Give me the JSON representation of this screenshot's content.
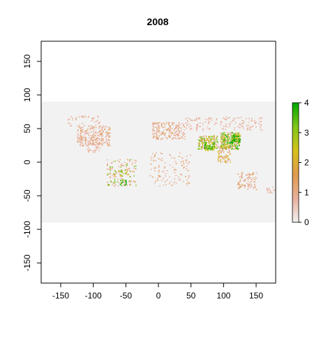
{
  "title": "2008",
  "chart_data": {
    "type": "heatmap",
    "title": "2008",
    "xlabel": "",
    "ylabel": "",
    "xlim": [
      -180,
      180
    ],
    "ylim": [
      -180,
      180
    ],
    "x_ticks": [
      -150,
      -100,
      -50,
      0,
      50,
      100,
      150
    ],
    "y_ticks": [
      -150,
      -100,
      -50,
      0,
      50,
      100,
      150
    ],
    "raster_extent": {
      "lon": [
        -180,
        180
      ],
      "lat": [
        -90,
        90
      ]
    },
    "background_color": "#f2f2f2",
    "legend": {
      "position": "right",
      "range": [
        0,
        4
      ],
      "ticks": [
        0,
        1,
        2,
        3,
        4
      ],
      "colors": [
        "#f2f2f2",
        "#e8b09c",
        "#e09a4e",
        "#d6c21a",
        "#7fc61a",
        "#00a600"
      ]
    },
    "grid": false
  }
}
